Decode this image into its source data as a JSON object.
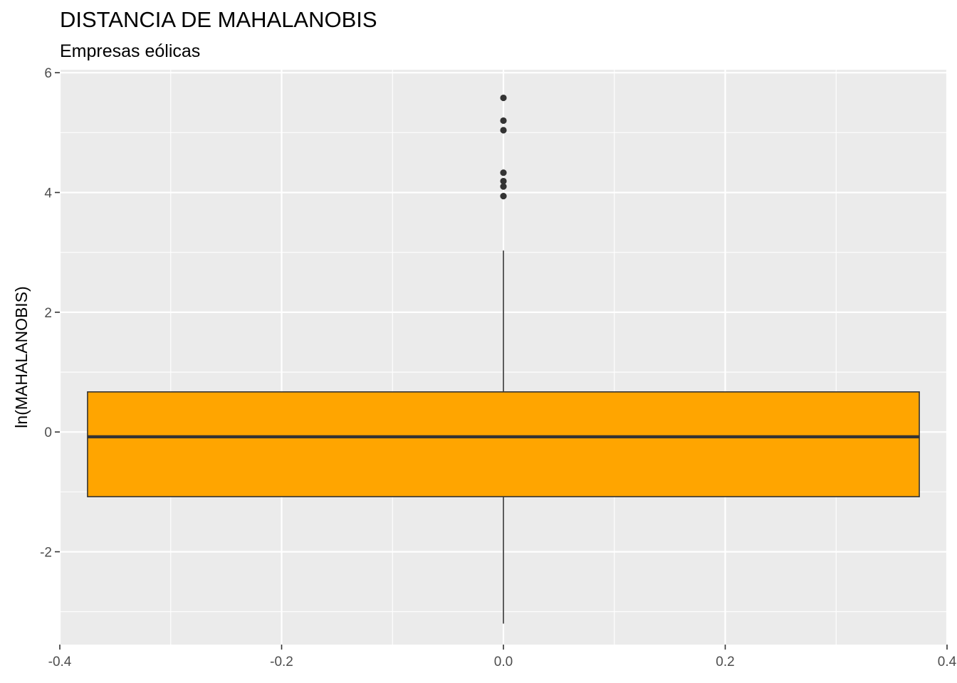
{
  "chart_data": {
    "type": "boxplot",
    "title": "DISTANCIA DE MAHALANOBIS",
    "subtitle": "Empresas eólicas",
    "xlabel": "",
    "ylabel": "ln(MAHALANOBIS)",
    "xlim": [
      -0.4,
      0.4
    ],
    "ylim": [
      -3.55,
      6.05
    ],
    "x_ticks": [
      -0.4,
      -0.2,
      0.0,
      0.2,
      0.4
    ],
    "x_tick_labels": [
      "-0.4",
      "-0.2",
      "0.0",
      "0.2",
      "0.4"
    ],
    "y_ticks": [
      -2,
      0,
      2,
      4,
      6
    ],
    "y_tick_labels": [
      "-2",
      "0",
      "2",
      "4",
      "6"
    ],
    "grid": true,
    "box": {
      "x": 0.0,
      "xmin": -0.375,
      "xmax": 0.375,
      "q1": -1.08,
      "median": -0.08,
      "q3": 0.67,
      "whisker_low": -3.2,
      "whisker_high": 3.03
    },
    "outliers": [
      5.58,
      5.2,
      5.04,
      4.33,
      4.19,
      4.1,
      3.94
    ],
    "colors": {
      "box_fill": "#FFA500",
      "box_line": "#333333",
      "panel_bg": "#EBEBEB",
      "grid": "#FFFFFF",
      "outlier": "#333333"
    }
  }
}
